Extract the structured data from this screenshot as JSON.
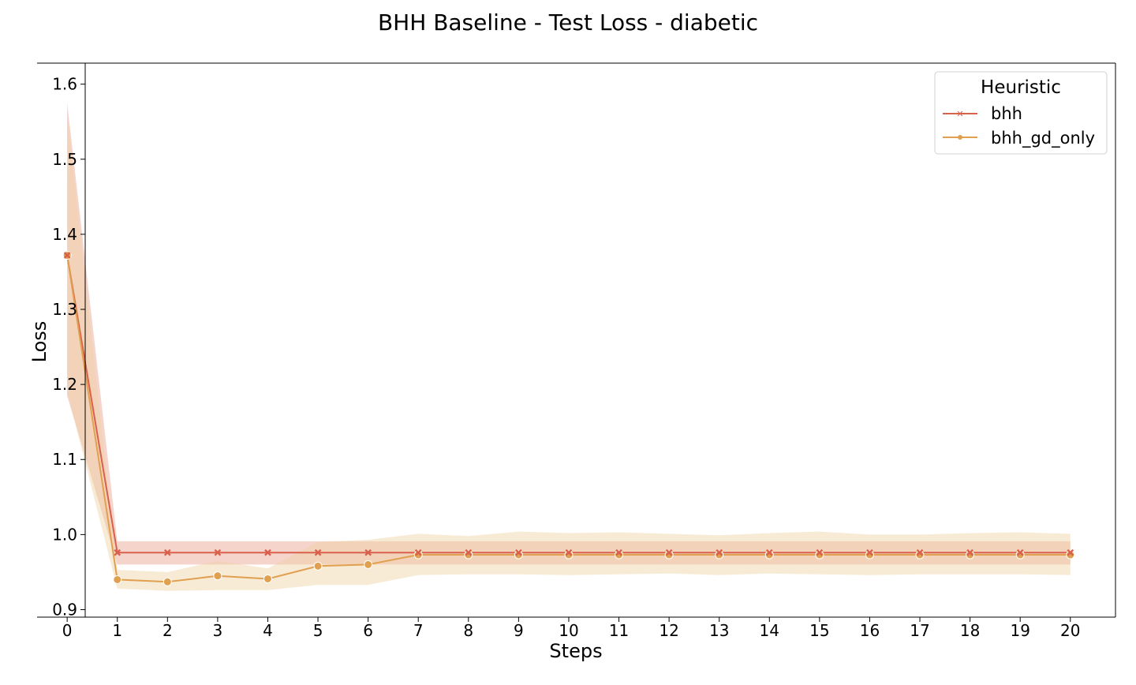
{
  "chart_data": {
    "type": "line",
    "title": "BHH Baseline - Test Loss - diabetic",
    "xlabel": "Steps",
    "ylabel": "Loss",
    "xlim": [
      -0.6,
      20.9
    ],
    "ylim": [
      0.89,
      1.628
    ],
    "x_ticks": [
      0,
      1,
      2,
      3,
      4,
      5,
      6,
      7,
      8,
      9,
      10,
      11,
      12,
      13,
      14,
      15,
      16,
      17,
      18,
      19,
      20
    ],
    "y_ticks": [
      0.9,
      1.0,
      1.1,
      1.2,
      1.3,
      1.4,
      1.5,
      1.6
    ],
    "y_tick_labels": [
      "0.9",
      "1.0",
      "1.1",
      "1.2",
      "1.3",
      "1.4",
      "1.5",
      "1.6"
    ],
    "grid": false,
    "legend": {
      "title": "Heuristic",
      "placement": "top-right"
    },
    "x": [
      0,
      1,
      2,
      3,
      4,
      5,
      6,
      7,
      8,
      9,
      10,
      11,
      12,
      13,
      14,
      15,
      16,
      17,
      18,
      19,
      20
    ],
    "series": [
      {
        "name": "bhh",
        "color": "#d9604c",
        "band_color": "#e8a08c",
        "marker": "x",
        "values": [
          1.372,
          0.976,
          0.976,
          0.976,
          0.976,
          0.976,
          0.976,
          0.976,
          0.976,
          0.976,
          0.976,
          0.976,
          0.976,
          0.976,
          0.976,
          0.976,
          0.976,
          0.976,
          0.976,
          0.976,
          0.976
        ],
        "lower": [
          1.185,
          0.96,
          0.96,
          0.96,
          0.96,
          0.96,
          0.96,
          0.96,
          0.96,
          0.96,
          0.96,
          0.96,
          0.96,
          0.96,
          0.96,
          0.96,
          0.96,
          0.96,
          0.96,
          0.96,
          0.96
        ],
        "upper": [
          1.575,
          0.991,
          0.991,
          0.991,
          0.991,
          0.991,
          0.991,
          0.991,
          0.991,
          0.991,
          0.991,
          0.991,
          0.991,
          0.991,
          0.991,
          0.991,
          0.991,
          0.991,
          0.991,
          0.991,
          0.991
        ]
      },
      {
        "name": "bhh_gd_only",
        "color": "#e0a050",
        "band_color": "#f0d2a4",
        "marker": "o",
        "values": [
          1.372,
          0.94,
          0.937,
          0.945,
          0.941,
          0.958,
          0.96,
          0.973,
          0.973,
          0.973,
          0.973,
          0.973,
          0.973,
          0.973,
          0.973,
          0.973,
          0.973,
          0.973,
          0.973,
          0.973,
          0.973
        ],
        "lower": [
          1.19,
          0.928,
          0.925,
          0.926,
          0.926,
          0.933,
          0.933,
          0.946,
          0.947,
          0.947,
          0.946,
          0.947,
          0.948,
          0.946,
          0.948,
          0.947,
          0.946,
          0.947,
          0.947,
          0.947,
          0.946
        ],
        "upper": [
          1.56,
          0.953,
          0.95,
          0.965,
          0.955,
          0.99,
          0.993,
          1.001,
          0.998,
          1.004,
          1.002,
          1.003,
          1.001,
          0.999,
          1.002,
          1.004,
          1.0,
          1.0,
          1.002,
          1.003,
          1.001
        ]
      }
    ]
  }
}
